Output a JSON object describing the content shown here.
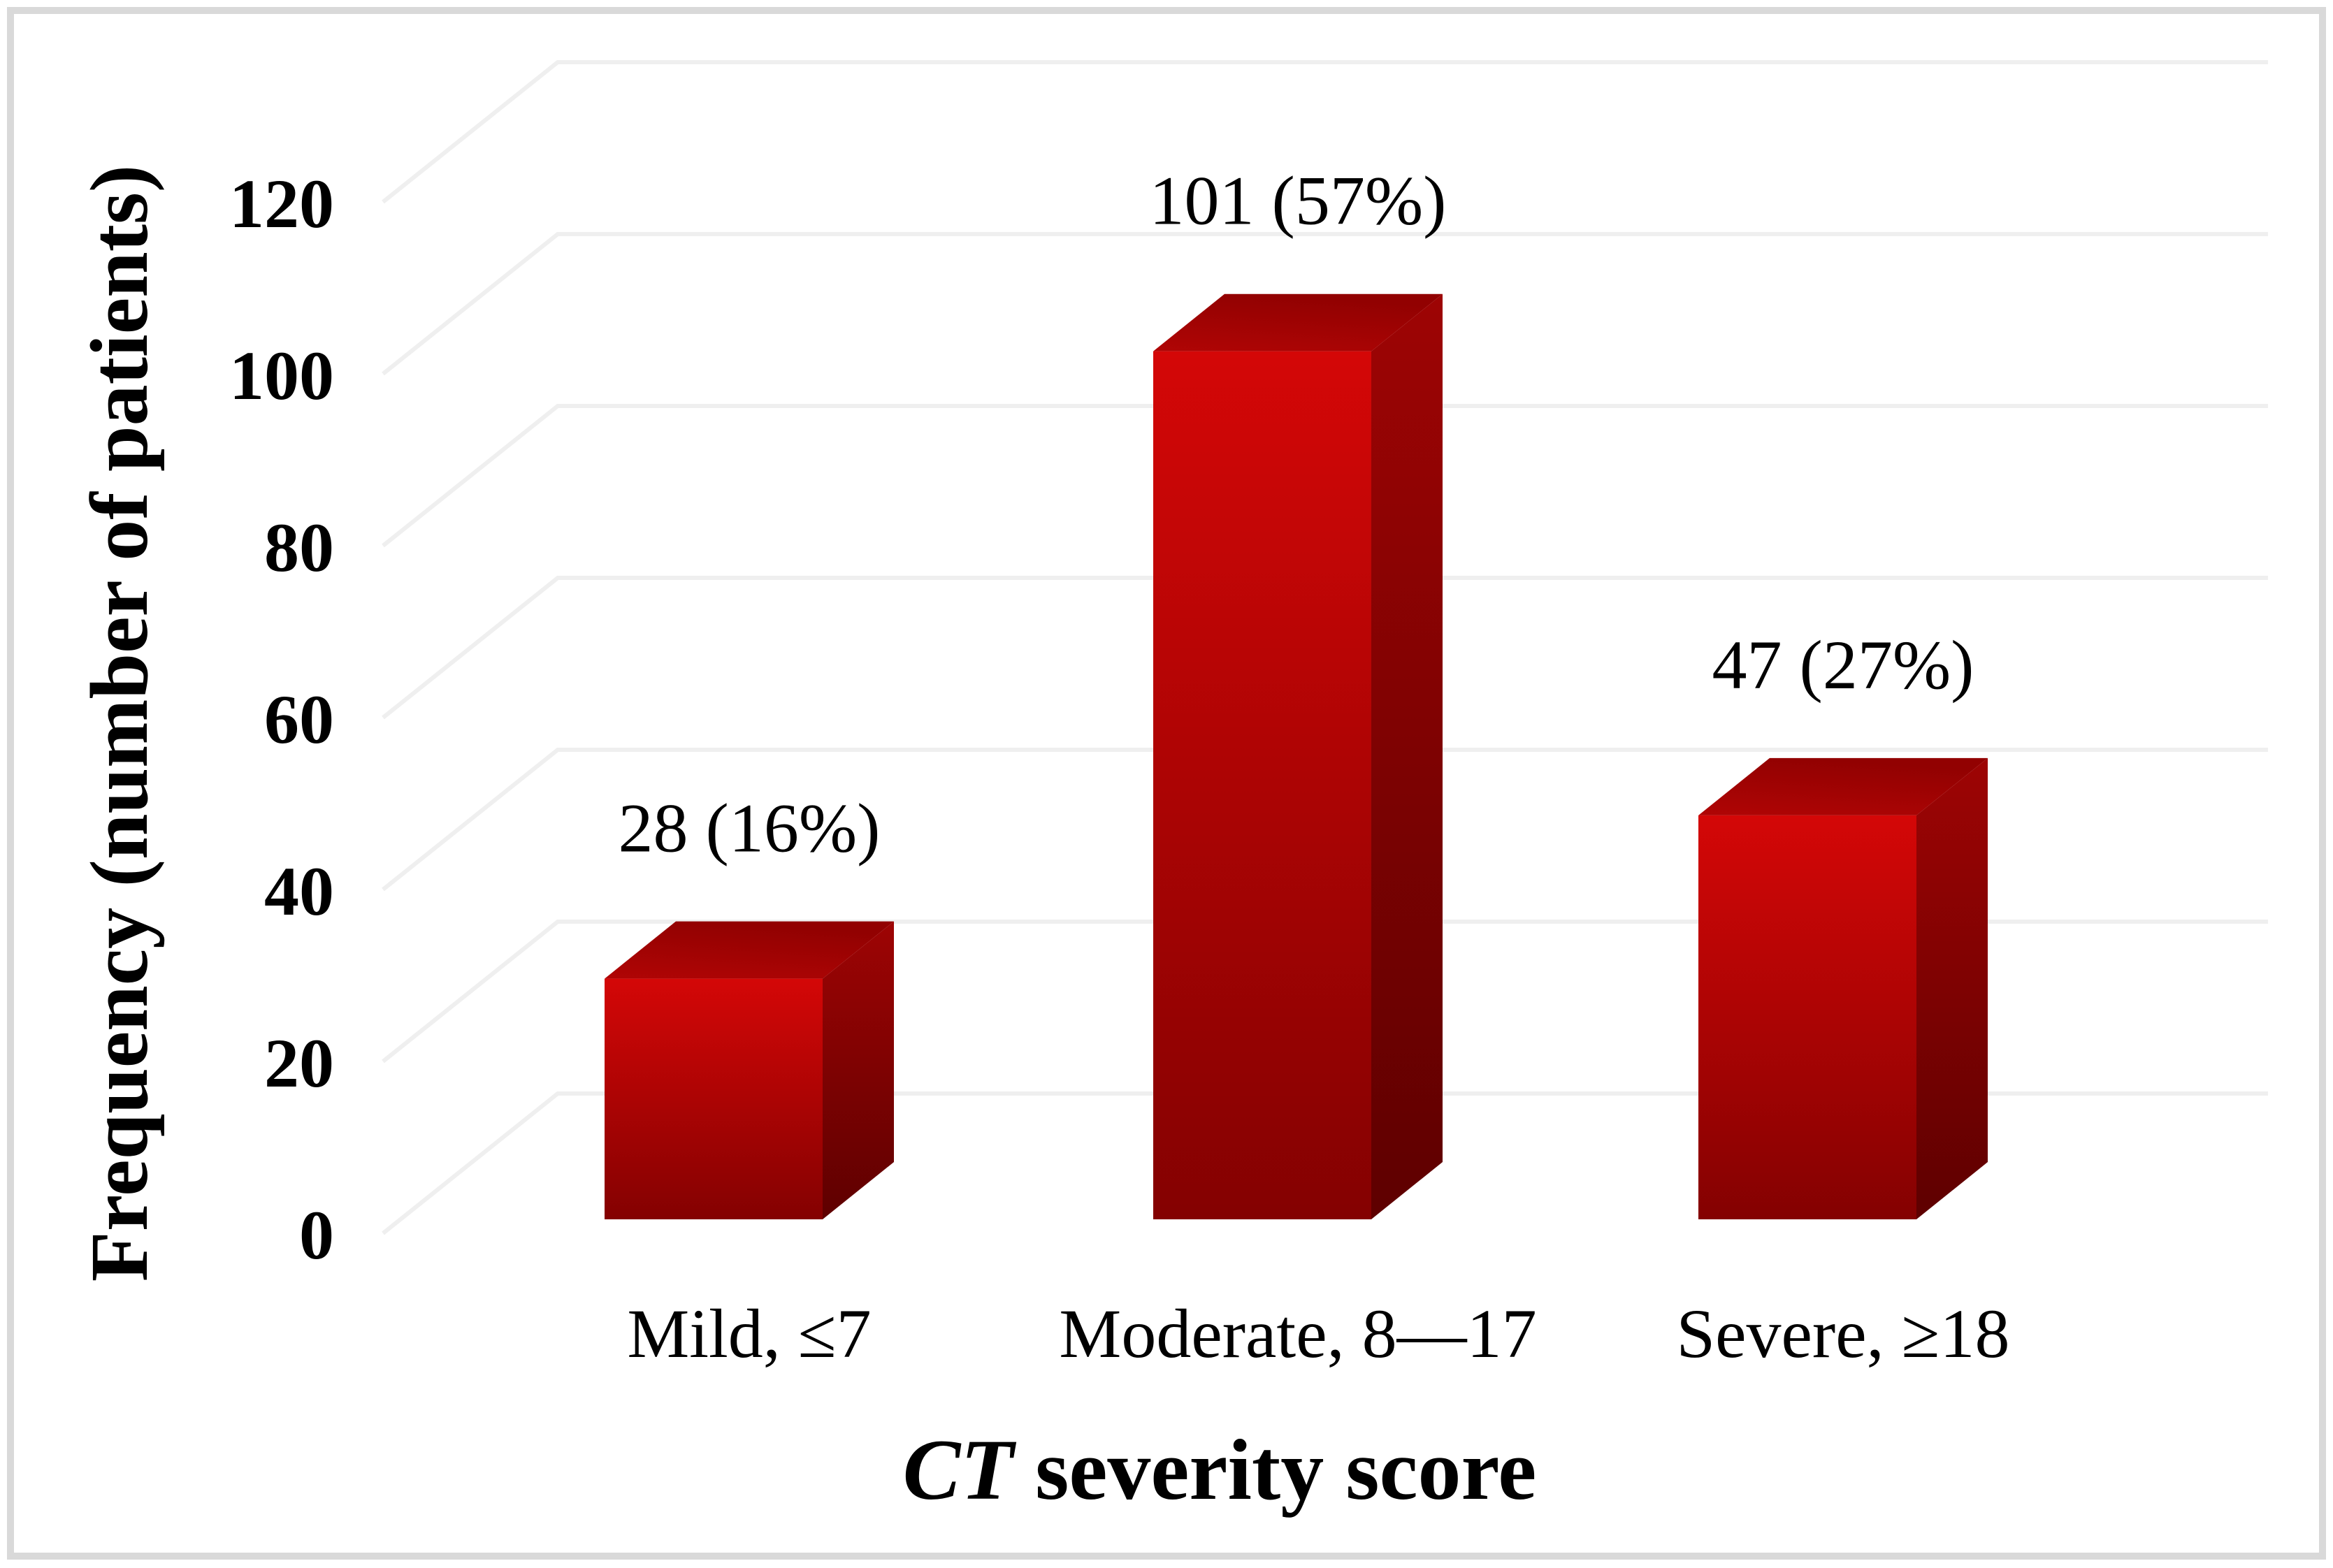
{
  "figure": {
    "border_color": "#d9d9d9",
    "background_color": "#ffffff",
    "text_color": "#000000"
  },
  "chart_data": {
    "type": "bar",
    "variant": "3d-column",
    "title": "",
    "categories": [
      "Mild, ≤7",
      "Moderate, 8—17",
      "Severe, ≥18"
    ],
    "values": [
      28,
      101,
      47
    ],
    "percentages": [
      16,
      57,
      27
    ],
    "data_labels": [
      "28 (16%)",
      "101 (57%)",
      "47 (27%)"
    ],
    "xlabel": "CT severity score",
    "xlabel_italic": "CT",
    "xlabel_rest": " severity score",
    "ylabel": "Frequency (number of patients)",
    "yticks": [
      0,
      20,
      40,
      60,
      80,
      100,
      120
    ],
    "ylim": [
      0,
      120
    ],
    "grid": true,
    "legend": false,
    "colors": {
      "bar_front_top": "#d40707",
      "bar_front_bottom": "#840101",
      "bar_top_near": "#b00505",
      "bar_top_far": "#920101",
      "bar_side_top": "#9e0404",
      "bar_side_bottom": "#5e0000",
      "gridline": "#efefef"
    }
  }
}
